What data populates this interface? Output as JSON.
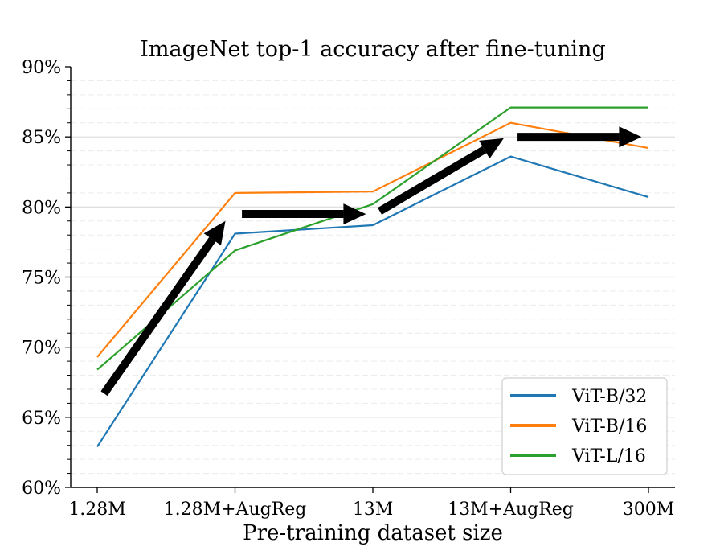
{
  "chart_data": {
    "type": "line",
    "title": "ImageNet top-1 accuracy after fine-tuning",
    "xlabel": "Pre-training dataset size",
    "ylabel": "",
    "categories": [
      "1.28M",
      "1.28M+AugReg",
      "13M",
      "13M+AugReg",
      "300M"
    ],
    "ylim": [
      60,
      90
    ],
    "yticks": [
      60,
      65,
      70,
      75,
      80,
      85,
      90
    ],
    "ytick_labels": [
      "60%",
      "65%",
      "70%",
      "75%",
      "80%",
      "85%",
      "90%"
    ],
    "grid": "horizontal major solid, minor dashed",
    "legend_position": "bottom-right",
    "series": [
      {
        "name": "ViT-B/32",
        "color": "#1f77b4",
        "values": [
          62.9,
          78.1,
          78.7,
          83.6,
          80.7
        ]
      },
      {
        "name": "ViT-B/16",
        "color": "#ff7f0e",
        "values": [
          69.3,
          81.0,
          81.1,
          86.0,
          84.2
        ]
      },
      {
        "name": "ViT-L/16",
        "color": "#2ca02c",
        "values": [
          68.4,
          76.9,
          80.2,
          87.1,
          87.1
        ]
      }
    ],
    "annotations": {
      "type": "arrows",
      "color": "#000000",
      "arrows": [
        {
          "from": [
            0.05,
            66.7
          ],
          "to": [
            0.93,
            79.0
          ]
        },
        {
          "from": [
            1.05,
            79.5
          ],
          "to": [
            1.95,
            79.5
          ]
        },
        {
          "from": [
            2.05,
            79.7
          ],
          "to": [
            2.95,
            84.9
          ]
        },
        {
          "from": [
            3.05,
            85.0
          ],
          "to": [
            3.95,
            85.0
          ]
        }
      ]
    }
  }
}
